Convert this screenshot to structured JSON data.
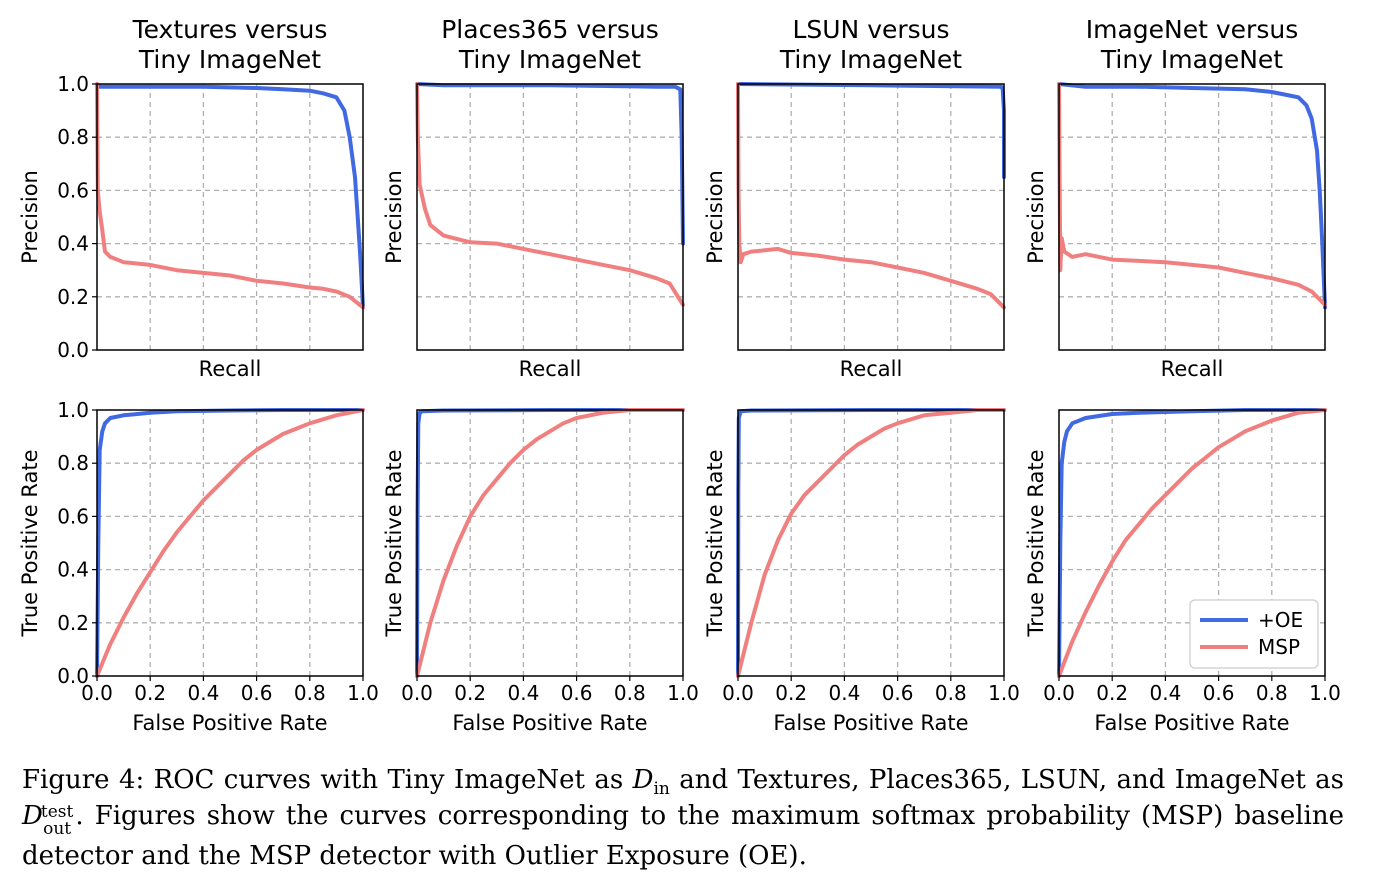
{
  "colors": {
    "oe": "#4169e1",
    "msp": "#f08080",
    "grid": "#b0b0b0"
  },
  "row_labels": {
    "pr_ylabel": "Precision",
    "pr_xlabel": "Recall",
    "roc_ylabel": "True Positive Rate",
    "roc_xlabel": "False Positive Rate"
  },
  "legend": {
    "oe": "+OE",
    "msp": "MSP"
  },
  "caption": {
    "prefix": "Figure 4: ROC curves with Tiny ImageNet as ",
    "d_in_symbol": "D",
    "d_in_sub": "in",
    "middle": " and Textures, Places365, LSUN, and ImageNet as ",
    "d_out_symbol": "D",
    "d_out_sup": "test",
    "d_out_sub": "out",
    "suffix": ". Figures show the curves corresponding to the maximum softmax probability (MSP) baseline detector and the MSP detector with Outlier Exposure (OE)."
  },
  "chart_data": [
    {
      "type": "line",
      "title": "Textures versus Tiny ImageNet",
      "kind": "pr",
      "xlabel": "Recall",
      "ylabel": "Precision",
      "xlim": [
        0,
        1
      ],
      "ylim": [
        0,
        1
      ],
      "yticks": [
        "0.0",
        "0.2",
        "0.4",
        "0.6",
        "0.8",
        "1.0"
      ],
      "xticks": [],
      "grid": true,
      "series": [
        {
          "name": "+OE",
          "x": [
            0,
            0.01,
            0.2,
            0.4,
            0.6,
            0.7,
            0.8,
            0.85,
            0.9,
            0.93,
            0.95,
            0.97,
            0.98,
            0.99,
            1.0
          ],
          "y": [
            1.0,
            0.99,
            0.99,
            0.99,
            0.985,
            0.98,
            0.975,
            0.965,
            0.95,
            0.9,
            0.8,
            0.65,
            0.5,
            0.35,
            0.16
          ]
        },
        {
          "name": "MSP",
          "x": [
            0,
            0.003,
            0.01,
            0.02,
            0.03,
            0.05,
            0.1,
            0.2,
            0.3,
            0.4,
            0.5,
            0.6,
            0.7,
            0.8,
            0.85,
            0.9,
            0.95,
            1.0
          ],
          "y": [
            1.0,
            0.6,
            0.52,
            0.45,
            0.37,
            0.35,
            0.33,
            0.32,
            0.3,
            0.29,
            0.28,
            0.26,
            0.25,
            0.235,
            0.23,
            0.22,
            0.2,
            0.16
          ]
        }
      ]
    },
    {
      "type": "line",
      "title": "Places365 versus Tiny ImageNet",
      "kind": "pr",
      "xlabel": "Recall",
      "ylabel": "Precision",
      "xlim": [
        0,
        1
      ],
      "ylim": [
        0,
        1
      ],
      "yticks": [],
      "xticks": [],
      "grid": true,
      "series": [
        {
          "name": "+OE",
          "x": [
            0,
            0.1,
            0.5,
            0.9,
            0.97,
            0.99,
            0.995,
            1.0
          ],
          "y": [
            1.0,
            0.995,
            0.995,
            0.99,
            0.99,
            0.98,
            0.8,
            0.4
          ]
        },
        {
          "name": "MSP",
          "x": [
            0,
            0.003,
            0.01,
            0.03,
            0.05,
            0.1,
            0.2,
            0.3,
            0.4,
            0.5,
            0.6,
            0.7,
            0.8,
            0.9,
            0.95,
            1.0
          ],
          "y": [
            1.0,
            0.8,
            0.62,
            0.53,
            0.47,
            0.43,
            0.405,
            0.4,
            0.38,
            0.36,
            0.34,
            0.32,
            0.3,
            0.27,
            0.25,
            0.17
          ]
        }
      ]
    },
    {
      "type": "line",
      "title": "LSUN versus Tiny ImageNet",
      "kind": "pr",
      "xlabel": "Recall",
      "ylabel": "Precision",
      "xlim": [
        0,
        1
      ],
      "ylim": [
        0,
        1
      ],
      "yticks": [],
      "xticks": [],
      "grid": true,
      "series": [
        {
          "name": "+OE",
          "x": [
            0,
            0.5,
            0.99,
            0.995,
            1.0,
            1.0
          ],
          "y": [
            1.0,
            0.995,
            0.99,
            0.98,
            0.9,
            0.65
          ]
        },
        {
          "name": "MSP",
          "x": [
            0,
            0.002,
            0.005,
            0.01,
            0.02,
            0.05,
            0.1,
            0.15,
            0.2,
            0.3,
            0.4,
            0.5,
            0.6,
            0.7,
            0.8,
            0.9,
            0.95,
            1.0
          ],
          "y": [
            1.0,
            0.6,
            0.4,
            0.33,
            0.36,
            0.37,
            0.375,
            0.38,
            0.365,
            0.355,
            0.34,
            0.33,
            0.31,
            0.29,
            0.26,
            0.23,
            0.21,
            0.16
          ]
        }
      ]
    },
    {
      "type": "line",
      "title": "ImageNet versus Tiny ImageNet",
      "kind": "pr",
      "xlabel": "Recall",
      "ylabel": "Precision",
      "xlim": [
        0,
        1
      ],
      "ylim": [
        0,
        1
      ],
      "yticks": [],
      "xticks": [],
      "grid": true,
      "series": [
        {
          "name": "+OE",
          "x": [
            0,
            0.1,
            0.3,
            0.5,
            0.7,
            0.8,
            0.85,
            0.9,
            0.93,
            0.95,
            0.97,
            0.98,
            0.99,
            1.0
          ],
          "y": [
            1.0,
            0.99,
            0.99,
            0.985,
            0.98,
            0.97,
            0.96,
            0.95,
            0.92,
            0.87,
            0.75,
            0.6,
            0.4,
            0.16
          ]
        },
        {
          "name": "MSP",
          "x": [
            0,
            0.002,
            0.005,
            0.01,
            0.02,
            0.05,
            0.1,
            0.2,
            0.3,
            0.4,
            0.5,
            0.6,
            0.7,
            0.8,
            0.9,
            0.95,
            1.0
          ],
          "y": [
            1.0,
            0.7,
            0.3,
            0.42,
            0.37,
            0.35,
            0.36,
            0.34,
            0.335,
            0.33,
            0.32,
            0.31,
            0.29,
            0.27,
            0.245,
            0.22,
            0.17
          ]
        }
      ]
    },
    {
      "type": "line",
      "title": "",
      "kind": "roc",
      "xlabel": "False Positive Rate",
      "ylabel": "True Positive Rate",
      "xlim": [
        0,
        1
      ],
      "ylim": [
        0,
        1
      ],
      "yticks": [
        "0.0",
        "0.2",
        "0.4",
        "0.6",
        "0.8",
        "1.0"
      ],
      "xticks": [
        "0.0",
        "0.2",
        "0.4",
        "0.6",
        "0.8",
        "1.0"
      ],
      "grid": true,
      "series": [
        {
          "name": "+OE",
          "x": [
            0,
            0.005,
            0.01,
            0.02,
            0.03,
            0.05,
            0.1,
            0.2,
            0.3,
            0.5,
            0.7,
            1.0
          ],
          "y": [
            0,
            0.5,
            0.85,
            0.92,
            0.95,
            0.97,
            0.98,
            0.99,
            0.995,
            0.998,
            1.0,
            1.0
          ]
        },
        {
          "name": "MSP",
          "x": [
            0,
            0.05,
            0.1,
            0.15,
            0.2,
            0.25,
            0.3,
            0.35,
            0.4,
            0.45,
            0.5,
            0.55,
            0.6,
            0.65,
            0.7,
            0.75,
            0.8,
            0.9,
            1.0
          ],
          "y": [
            0,
            0.12,
            0.22,
            0.31,
            0.39,
            0.47,
            0.54,
            0.6,
            0.66,
            0.71,
            0.76,
            0.81,
            0.85,
            0.88,
            0.91,
            0.93,
            0.95,
            0.98,
            1.0
          ]
        }
      ]
    },
    {
      "type": "line",
      "title": "",
      "kind": "roc",
      "xlabel": "False Positive Rate",
      "ylabel": "",
      "xlim": [
        0,
        1
      ],
      "ylim": [
        0,
        1
      ],
      "yticks": [],
      "xticks": [
        "0.0",
        "0.2",
        "0.4",
        "0.6",
        "0.8",
        "1.0"
      ],
      "grid": true,
      "series": [
        {
          "name": "+OE",
          "x": [
            0,
            0.002,
            0.005,
            0.01,
            0.02,
            0.1,
            0.5,
            1.0
          ],
          "y": [
            0,
            0.6,
            0.95,
            0.99,
            0.995,
            0.998,
            1.0,
            1.0
          ]
        },
        {
          "name": "MSP",
          "x": [
            0,
            0.05,
            0.1,
            0.15,
            0.2,
            0.25,
            0.3,
            0.35,
            0.4,
            0.45,
            0.5,
            0.55,
            0.6,
            0.7,
            0.8,
            0.9,
            1.0
          ],
          "y": [
            0,
            0.2,
            0.36,
            0.49,
            0.6,
            0.68,
            0.74,
            0.8,
            0.85,
            0.89,
            0.92,
            0.95,
            0.97,
            0.99,
            1.0,
            1.0,
            1.0
          ]
        }
      ]
    },
    {
      "type": "line",
      "title": "",
      "kind": "roc",
      "xlabel": "False Positive Rate",
      "ylabel": "",
      "xlim": [
        0,
        1
      ],
      "ylim": [
        0,
        1
      ],
      "yticks": [],
      "xticks": [
        "0.0",
        "0.2",
        "0.4",
        "0.6",
        "0.8",
        "1.0"
      ],
      "grid": true,
      "series": [
        {
          "name": "+OE",
          "x": [
            0,
            0.001,
            0.003,
            0.01,
            0.05,
            0.5,
            1.0
          ],
          "y": [
            0,
            0.7,
            0.97,
            0.995,
            0.998,
            1.0,
            1.0
          ]
        },
        {
          "name": "MSP",
          "x": [
            0,
            0.05,
            0.1,
            0.15,
            0.2,
            0.25,
            0.3,
            0.35,
            0.4,
            0.45,
            0.5,
            0.55,
            0.6,
            0.7,
            0.8,
            0.9,
            1.0
          ],
          "y": [
            0,
            0.2,
            0.38,
            0.51,
            0.61,
            0.68,
            0.73,
            0.78,
            0.83,
            0.87,
            0.9,
            0.93,
            0.95,
            0.98,
            0.99,
            1.0,
            1.0
          ]
        }
      ]
    },
    {
      "type": "line",
      "title": "",
      "kind": "roc",
      "xlabel": "False Positive Rate",
      "ylabel": "",
      "xlim": [
        0,
        1
      ],
      "ylim": [
        0,
        1
      ],
      "yticks": [],
      "xticks": [
        "0.0",
        "0.2",
        "0.4",
        "0.6",
        "0.8",
        "1.0"
      ],
      "grid": true,
      "legend_position": "lower right",
      "series": [
        {
          "name": "+OE",
          "x": [
            0,
            0.005,
            0.01,
            0.02,
            0.03,
            0.05,
            0.1,
            0.2,
            0.3,
            0.5,
            0.7,
            1.0
          ],
          "y": [
            0,
            0.5,
            0.8,
            0.88,
            0.92,
            0.95,
            0.97,
            0.985,
            0.99,
            0.995,
            1.0,
            1.0
          ]
        },
        {
          "name": "MSP",
          "x": [
            0,
            0.05,
            0.1,
            0.15,
            0.2,
            0.25,
            0.3,
            0.35,
            0.4,
            0.45,
            0.5,
            0.55,
            0.6,
            0.65,
            0.7,
            0.8,
            0.9,
            1.0
          ],
          "y": [
            0,
            0.13,
            0.24,
            0.34,
            0.43,
            0.51,
            0.57,
            0.63,
            0.68,
            0.73,
            0.78,
            0.82,
            0.86,
            0.89,
            0.92,
            0.96,
            0.99,
            1.0
          ]
        }
      ]
    }
  ]
}
